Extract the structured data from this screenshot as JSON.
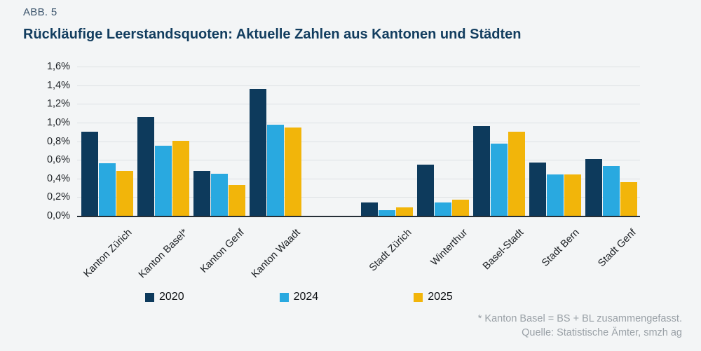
{
  "figure": {
    "label": "ABB. 5",
    "title": "Rückläufige Leerstandsquoten: Aktuelle Zahlen aus Kantonen und Städten"
  },
  "chart_data": {
    "type": "bar",
    "title": "Rückläufige Leerstandsquoten: Aktuelle Zahlen aus Kantonen und Städten",
    "categories": [
      "Kanton Zürich",
      "Kanton Basel*",
      "Kanton Genf",
      "Kanton Waadt",
      "Stadt Zürich",
      "Winterthur",
      "Basel-Stadt",
      "Stadt Bern",
      "Stadt Genf"
    ],
    "cluster_break_after_index": 3,
    "series": [
      {
        "name": "2020",
        "color": "#0d3a5c",
        "values": [
          0.9,
          1.06,
          0.48,
          1.36,
          0.14,
          0.55,
          0.96,
          0.57,
          0.61
        ]
      },
      {
        "name": "2024",
        "color": "#29a9e0",
        "values": [
          0.56,
          0.75,
          0.45,
          0.98,
          0.06,
          0.14,
          0.77,
          0.44,
          0.53
        ]
      },
      {
        "name": "2025",
        "color": "#f2b50a",
        "values": [
          0.48,
          0.8,
          0.33,
          0.95,
          0.09,
          0.17,
          0.9,
          0.44,
          0.36
        ]
      }
    ],
    "xlabel": "",
    "ylabel": "",
    "ylim": [
      0,
      1.6
    ],
    "ytick_values": [
      1.6,
      1.4,
      1.2,
      1.0,
      0.8,
      0.6,
      0.4,
      0.2,
      0.0
    ],
    "ytick_labels": [
      "1,6%",
      "1,4%",
      "1,2%",
      "1,0%",
      "0,8%",
      "0,6%",
      "0,4%",
      "0,2%",
      "0,0%"
    ],
    "grid": true,
    "legend_position": "bottom"
  },
  "footnote": {
    "line1": "* Kanton Basel = BS + BL zusammengefasst.",
    "line2": "Quelle: Statistische Ämter, smzh ag"
  },
  "colors": {
    "background": "#f3f5f6",
    "title": "#123d5f",
    "fig_label": "#3a536b",
    "gridline": "#dde1e4",
    "axis_line": "#262f37",
    "footnote": "#9aa1a7",
    "series_2020": "#0d3a5c",
    "series_2024": "#29a9e0",
    "series_2025": "#f2b50a"
  }
}
